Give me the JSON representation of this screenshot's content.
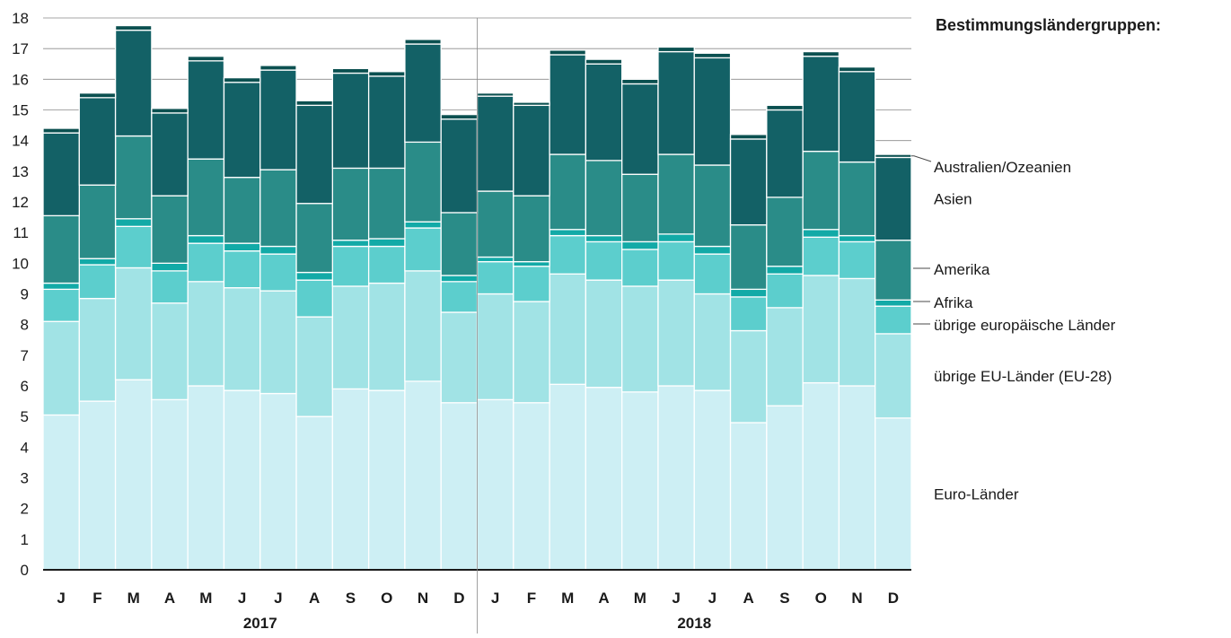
{
  "chart_data": {
    "type": "bar",
    "stacked": true,
    "legend_title": "Bestimmungsländergruppen:",
    "ylim": [
      0,
      18
    ],
    "yticks": [
      0,
      1,
      2,
      3,
      4,
      5,
      6,
      7,
      8,
      9,
      10,
      11,
      12,
      13,
      14,
      15,
      16,
      17,
      18
    ],
    "grid": true,
    "legend_position": "right",
    "years": [
      {
        "label": "2017",
        "months": [
          "J",
          "F",
          "M",
          "A",
          "M",
          "J",
          "J",
          "A",
          "S",
          "O",
          "N",
          "D"
        ]
      },
      {
        "label": "2018",
        "months": [
          "J",
          "F",
          "M",
          "A",
          "M",
          "J",
          "J",
          "A",
          "S",
          "O",
          "N",
          "D"
        ]
      }
    ],
    "categories": [
      "J",
      "F",
      "M",
      "A",
      "M",
      "J",
      "J",
      "A",
      "S",
      "O",
      "N",
      "D",
      "J",
      "F",
      "M",
      "A",
      "M",
      "J",
      "J",
      "A",
      "S",
      "O",
      "N",
      "D"
    ],
    "series": [
      {
        "name": "Euro-Länder",
        "color": "#cdeff4",
        "values": [
          5.05,
          5.5,
          6.2,
          5.55,
          6.0,
          5.85,
          5.75,
          5.0,
          5.9,
          5.85,
          6.15,
          5.45,
          5.55,
          5.45,
          6.05,
          5.95,
          5.8,
          6.0,
          5.85,
          4.8,
          5.35,
          6.1,
          6.0,
          4.95
        ]
      },
      {
        "name": "übrige EU-Länder (EU-28)",
        "color": "#a1e3e5",
        "values": [
          3.05,
          3.35,
          3.65,
          3.15,
          3.4,
          3.35,
          3.35,
          3.25,
          3.35,
          3.5,
          3.6,
          2.95,
          3.45,
          3.3,
          3.6,
          3.5,
          3.45,
          3.45,
          3.15,
          3.0,
          3.2,
          3.5,
          3.5,
          2.75
        ]
      },
      {
        "name": "übrige europäische Länder",
        "color": "#5ccecd",
        "values": [
          1.05,
          1.1,
          1.35,
          1.05,
          1.25,
          1.2,
          1.2,
          1.2,
          1.3,
          1.2,
          1.4,
          1.0,
          1.05,
          1.15,
          1.25,
          1.25,
          1.2,
          1.25,
          1.3,
          1.1,
          1.1,
          1.25,
          1.2,
          0.9
        ]
      },
      {
        "name": "Afrika",
        "color": "#12aaa7",
        "values": [
          0.2,
          0.2,
          0.25,
          0.25,
          0.25,
          0.25,
          0.25,
          0.25,
          0.2,
          0.25,
          0.2,
          0.2,
          0.15,
          0.15,
          0.2,
          0.2,
          0.25,
          0.25,
          0.25,
          0.25,
          0.25,
          0.25,
          0.2,
          0.2
        ]
      },
      {
        "name": "Amerika",
        "color": "#2a8c88",
        "values": [
          2.2,
          2.4,
          2.7,
          2.2,
          2.5,
          2.15,
          2.5,
          2.25,
          2.35,
          2.3,
          2.6,
          2.05,
          2.15,
          2.15,
          2.45,
          2.45,
          2.2,
          2.6,
          2.65,
          2.1,
          2.25,
          2.55,
          2.4,
          1.95
        ]
      },
      {
        "name": "Asien",
        "color": "#136166",
        "values": [
          2.7,
          2.85,
          3.45,
          2.7,
          3.2,
          3.1,
          3.25,
          3.2,
          3.1,
          3.0,
          3.2,
          3.05,
          3.1,
          2.95,
          3.25,
          3.15,
          2.95,
          3.35,
          3.5,
          2.8,
          2.85,
          3.1,
          2.95,
          2.7
        ]
      },
      {
        "name": "Australien/Ozeanien",
        "color": "#0b5050",
        "values": [
          0.15,
          0.15,
          0.15,
          0.15,
          0.15,
          0.15,
          0.15,
          0.15,
          0.15,
          0.15,
          0.15,
          0.15,
          0.1,
          0.1,
          0.15,
          0.15,
          0.15,
          0.15,
          0.15,
          0.15,
          0.15,
          0.15,
          0.15,
          0.1
        ]
      }
    ]
  }
}
